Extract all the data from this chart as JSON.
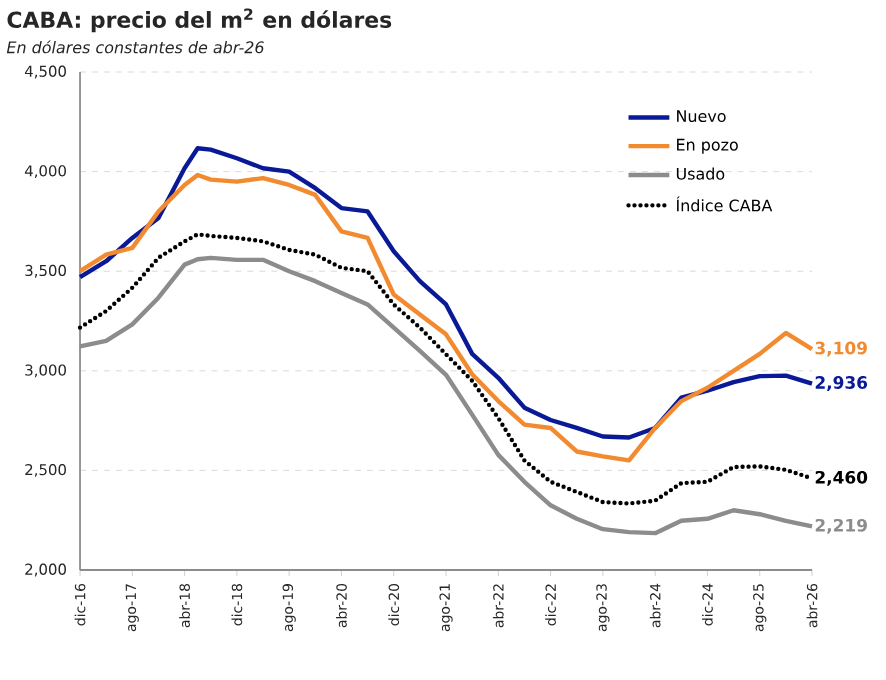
{
  "chart_data": {
    "type": "line",
    "title": "CABA: precio del m$^{2}$ en dólares",
    "subtitle": "En dólares constantes de abr-26",
    "x": [
      "2016-12",
      "2017-04",
      "2017-08",
      "2017-12",
      "2018-04",
      "2018-06",
      "2018-08",
      "2018-12",
      "2019-04",
      "2019-08",
      "2019-12",
      "2020-04",
      "2020-08",
      "2020-12",
      "2021-04",
      "2021-08",
      "2021-12",
      "2022-04",
      "2022-08",
      "2022-12",
      "2023-04",
      "2023-08",
      "2023-12",
      "2024-04",
      "2024-08",
      "2024-12",
      "2025-04",
      "2025-08",
      "2025-12",
      "2026-04"
    ],
    "series": [
      {
        "name": "Nuevo",
        "color": "#0a1a96",
        "line_style": "solid",
        "values": [
          3470,
          3550,
          3667,
          3767,
          4017,
          4117,
          4110,
          4067,
          4017,
          4000,
          3917,
          3817,
          3800,
          3600,
          3450,
          3333,
          3085,
          2965,
          2815,
          2753,
          2713,
          2670,
          2665,
          2713,
          2865,
          2900,
          2943,
          2973,
          2976,
          2936
        ],
        "value_labels": [
          null,
          null,
          null,
          null,
          null,
          null,
          null,
          null,
          null,
          null,
          null,
          null,
          null,
          null,
          null,
          null,
          null,
          null,
          null,
          null,
          null,
          null,
          null,
          null,
          null,
          null,
          null,
          null,
          null,
          "2,936"
        ]
      },
      {
        "name": "En pozo",
        "color": "#f28a30",
        "line_style": "solid",
        "values": [
          3500,
          3583,
          3617,
          3800,
          3933,
          3983,
          3960,
          3950,
          3967,
          3933,
          3883,
          3700,
          3667,
          3383,
          3283,
          3183,
          2983,
          2848,
          2730,
          2713,
          2595,
          2570,
          2550,
          2713,
          2848,
          2915,
          3000,
          3085,
          3190,
          3109
        ],
        "value_labels": [
          null,
          null,
          null,
          null,
          null,
          null,
          null,
          null,
          null,
          null,
          null,
          null,
          null,
          null,
          null,
          null,
          null,
          null,
          null,
          null,
          null,
          null,
          null,
          null,
          null,
          null,
          null,
          null,
          null,
          "3,109"
        ]
      },
      {
        "name": "Usado",
        "color": "#8c8c8c",
        "line_style": "solid",
        "values": [
          3123,
          3150,
          3233,
          3367,
          3533,
          3560,
          3567,
          3557,
          3557,
          3500,
          3450,
          3390,
          3333,
          3217,
          3100,
          2980,
          2780,
          2578,
          2443,
          2325,
          2257,
          2205,
          2190,
          2185,
          2247,
          2257,
          2300,
          2280,
          2247,
          2219
        ],
        "value_labels": [
          null,
          null,
          null,
          null,
          null,
          null,
          null,
          null,
          null,
          null,
          null,
          null,
          null,
          null,
          null,
          null,
          null,
          null,
          null,
          null,
          null,
          null,
          null,
          null,
          null,
          null,
          null,
          null,
          null,
          "2,219"
        ]
      },
      {
        "name": "Índice CABA",
        "color": "#000000",
        "line_style": "dotted",
        "values": [
          3217,
          3300,
          3417,
          3567,
          3650,
          3685,
          3677,
          3667,
          3650,
          3607,
          3583,
          3517,
          3500,
          3333,
          3217,
          3083,
          2950,
          2763,
          2550,
          2443,
          2392,
          2341,
          2334,
          2348,
          2436,
          2443,
          2517,
          2520,
          2503,
          2460
        ],
        "value_labels": [
          null,
          null,
          null,
          null,
          null,
          null,
          null,
          null,
          null,
          null,
          null,
          null,
          null,
          null,
          null,
          null,
          null,
          null,
          null,
          null,
          null,
          null,
          null,
          null,
          null,
          null,
          null,
          null,
          null,
          "2,460"
        ]
      }
    ],
    "xlim": [
      "2016-12",
      "2026-04"
    ],
    "xticks": [
      {
        "value": "2016-12",
        "label": "dic-16"
      },
      {
        "value": "2017-08",
        "label": "ago-17"
      },
      {
        "value": "2018-04",
        "label": "abr-18"
      },
      {
        "value": "2018-12",
        "label": "dic-18"
      },
      {
        "value": "2019-08",
        "label": "ago-19"
      },
      {
        "value": "2020-04",
        "label": "abr-20"
      },
      {
        "value": "2020-12",
        "label": "dic-20"
      },
      {
        "value": "2021-08",
        "label": "ago-21"
      },
      {
        "value": "2022-04",
        "label": "abr-22"
      },
      {
        "value": "2022-12",
        "label": "dic-22"
      },
      {
        "value": "2023-08",
        "label": "ago-23"
      },
      {
        "value": "2024-04",
        "label": "abr-24"
      },
      {
        "value": "2024-12",
        "label": "dic-24"
      },
      {
        "value": "2025-08",
        "label": "ago-25"
      },
      {
        "value": "2026-04",
        "label": "abr-26"
      }
    ],
    "ylim": [
      2000,
      4500
    ],
    "yticks": [
      {
        "value": 2000,
        "label": "2,000"
      },
      {
        "value": 2500,
        "label": "2,500"
      },
      {
        "value": 3000,
        "label": "3,000"
      },
      {
        "value": 3500,
        "label": "3,500"
      },
      {
        "value": 4000,
        "label": "4,000"
      },
      {
        "value": 4500,
        "label": "4,500"
      }
    ],
    "grid": "y",
    "legend": "top right"
  }
}
